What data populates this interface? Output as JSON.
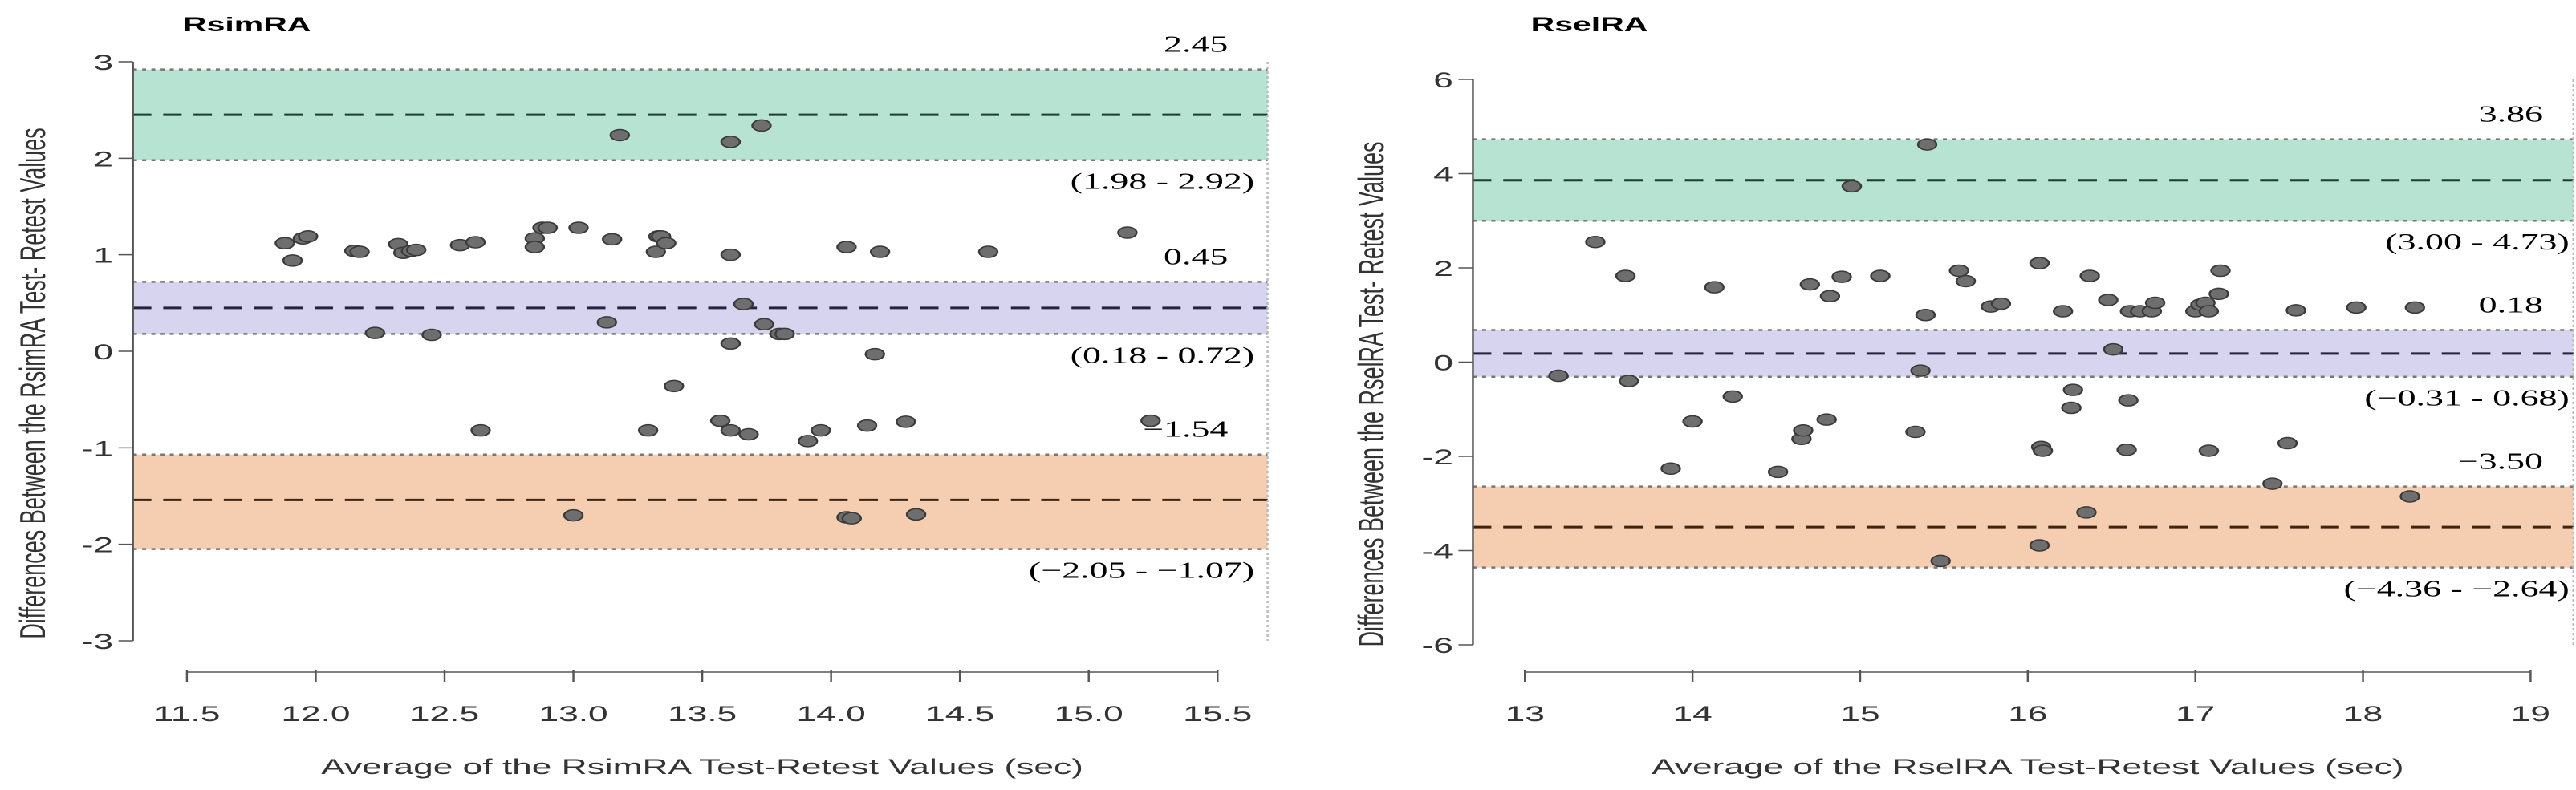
{
  "chart_data": [
    {
      "type": "scatter",
      "title": "RsimRA",
      "xlabel": "Average of the RsimRA Test-Retest Values (sec)",
      "ylabel": "Differences Between the RsimRA Test- Retest Values",
      "xlim": [
        11.3,
        15.7
      ],
      "ylim": [
        -3,
        3
      ],
      "xticks": [
        "11.5",
        "12.0",
        "12.5",
        "13.0",
        "13.5",
        "14.0",
        "14.5",
        "15.0",
        "15.5"
      ],
      "xtick_values": [
        11.5,
        12.0,
        12.5,
        13.0,
        13.5,
        14.0,
        14.5,
        15.0,
        15.5
      ],
      "yticks": [
        "3",
        "2",
        "1",
        "0",
        "-1",
        "-2",
        "-3"
      ],
      "ytick_values": [
        3,
        2,
        1,
        0,
        -1,
        -2,
        -3
      ],
      "bands": [
        {
          "name": "upper-loa",
          "mean": 2.45,
          "low": 1.98,
          "high": 2.92,
          "mean_label": "2.45",
          "ci_label": "(1.98 - 2.92)",
          "color": "#b7e3d3",
          "line_color": "#1f3d33"
        },
        {
          "name": "bias",
          "mean": 0.45,
          "low": 0.18,
          "high": 0.72,
          "mean_label": "0.45",
          "ci_label": "(0.18 - 0.72)",
          "color": "#d6d4ee",
          "line_color": "#25233d"
        },
        {
          "name": "lower-loa",
          "mean": -1.54,
          "low": -2.05,
          "high": -1.07,
          "mean_label": "−1.54",
          "ci_label": "(−2.05 - −1.07)",
          "color": "#f5cdb0",
          "line_color": "#3d2514"
        }
      ],
      "points": [
        [
          11.88,
          1.12
        ],
        [
          11.91,
          0.94
        ],
        [
          11.95,
          1.17
        ],
        [
          11.97,
          1.19
        ],
        [
          12.15,
          1.04
        ],
        [
          12.17,
          1.03
        ],
        [
          12.32,
          1.11
        ],
        [
          12.34,
          1.02
        ],
        [
          12.37,
          1.04
        ],
        [
          12.39,
          1.05
        ],
        [
          12.23,
          0.19
        ],
        [
          12.45,
          0.17
        ],
        [
          12.56,
          1.1
        ],
        [
          12.62,
          1.13
        ],
        [
          12.64,
          -0.82
        ],
        [
          12.85,
          1.17
        ],
        [
          12.85,
          1.08
        ],
        [
          12.88,
          1.28
        ],
        [
          12.9,
          1.28
        ],
        [
          13.02,
          1.28
        ],
        [
          13.15,
          1.16
        ],
        [
          13.13,
          0.3
        ],
        [
          13.18,
          2.24
        ],
        [
          13.0,
          -1.7
        ],
        [
          13.29,
          -0.82
        ],
        [
          13.32,
          1.03
        ],
        [
          13.33,
          1.19
        ],
        [
          13.34,
          1.19
        ],
        [
          13.36,
          1.12
        ],
        [
          13.39,
          -0.36
        ],
        [
          13.57,
          -0.72
        ],
        [
          13.61,
          1.0
        ],
        [
          13.61,
          2.17
        ],
        [
          13.61,
          0.08
        ],
        [
          13.61,
          -0.82
        ],
        [
          13.66,
          0.49
        ],
        [
          13.68,
          -0.86
        ],
        [
          13.73,
          2.34
        ],
        [
          13.74,
          0.28
        ],
        [
          13.8,
          0.18
        ],
        [
          13.82,
          0.18
        ],
        [
          13.91,
          -0.93
        ],
        [
          13.96,
          -0.82
        ],
        [
          14.06,
          1.08
        ],
        [
          14.06,
          -1.72
        ],
        [
          14.08,
          -1.73
        ],
        [
          14.14,
          -0.77
        ],
        [
          14.17,
          -0.03
        ],
        [
          14.19,
          1.03
        ],
        [
          14.29,
          -0.73
        ],
        [
          14.33,
          -1.69
        ],
        [
          14.61,
          1.03
        ],
        [
          15.15,
          1.23
        ],
        [
          15.24,
          -0.72
        ]
      ]
    },
    {
      "type": "scatter",
      "title": "RselRA",
      "xlabel": "Average of the RselRA Test-Retest Values (sec)",
      "ylabel": "Differences Between the RselRA Test- Retest Values",
      "xlim": [
        12.8,
        19.3
      ],
      "ylim": [
        -6,
        6
      ],
      "xticks": [
        "13",
        "14",
        "15",
        "16",
        "17",
        "18",
        "19"
      ],
      "xtick_values": [
        13,
        14,
        15,
        16,
        17,
        18,
        19
      ],
      "yticks": [
        "6",
        "4",
        "2",
        "0",
        "-2",
        "-4",
        "-6"
      ],
      "ytick_values": [
        6,
        4,
        2,
        0,
        -2,
        -4,
        -6
      ],
      "bands": [
        {
          "name": "upper-loa",
          "mean": 3.86,
          "low": 3.0,
          "high": 4.73,
          "mean_label": "3.86",
          "ci_label": "(3.00 - 4.73)",
          "color": "#b7e3d3",
          "line_color": "#1f3d33"
        },
        {
          "name": "bias",
          "mean": 0.18,
          "low": -0.31,
          "high": 0.68,
          "mean_label": "0.18",
          "ci_label": "(−0.31 - 0.68)",
          "color": "#d6d4ee",
          "line_color": "#25233d"
        },
        {
          "name": "lower-loa",
          "mean": -3.5,
          "low": -4.36,
          "high": -2.64,
          "mean_label": "−3.50",
          "ci_label": "(−4.36 - −2.64)",
          "color": "#f5cdb0",
          "line_color": "#3d2514"
        }
      ],
      "points": [
        [
          13.2,
          -0.29
        ],
        [
          13.42,
          2.55
        ],
        [
          13.6,
          1.83
        ],
        [
          13.62,
          -0.4
        ],
        [
          13.87,
          -2.26
        ],
        [
          14.0,
          -1.26
        ],
        [
          14.13,
          1.59
        ],
        [
          14.24,
          -0.73
        ],
        [
          14.51,
          -2.33
        ],
        [
          14.65,
          -1.63
        ],
        [
          14.66,
          -1.45
        ],
        [
          14.7,
          1.65
        ],
        [
          14.8,
          -1.22
        ],
        [
          14.82,
          1.4
        ],
        [
          14.89,
          1.81
        ],
        [
          14.95,
          3.73
        ],
        [
          15.12,
          1.83
        ],
        [
          15.33,
          -1.48
        ],
        [
          15.36,
          -0.18
        ],
        [
          15.39,
          1.0
        ],
        [
          15.4,
          4.62
        ],
        [
          15.48,
          -4.22
        ],
        [
          15.59,
          1.94
        ],
        [
          15.63,
          1.72
        ],
        [
          15.78,
          1.18
        ],
        [
          15.84,
          1.24
        ],
        [
          16.07,
          2.1
        ],
        [
          16.07,
          -3.89
        ],
        [
          16.08,
          -1.8
        ],
        [
          16.09,
          -1.88
        ],
        [
          16.21,
          1.08
        ],
        [
          16.26,
          -0.97
        ],
        [
          16.27,
          -0.59
        ],
        [
          16.35,
          -3.19
        ],
        [
          16.37,
          1.83
        ],
        [
          16.48,
          1.32
        ],
        [
          16.51,
          0.27
        ],
        [
          16.59,
          -1.86
        ],
        [
          16.6,
          -0.81
        ],
        [
          16.61,
          1.08
        ],
        [
          16.67,
          1.08
        ],
        [
          16.74,
          1.08
        ],
        [
          16.76,
          1.26
        ],
        [
          17.0,
          1.08
        ],
        [
          17.03,
          1.22
        ],
        [
          17.06,
          1.26
        ],
        [
          17.08,
          1.08
        ],
        [
          17.08,
          -1.88
        ],
        [
          17.14,
          1.45
        ],
        [
          17.15,
          1.94
        ],
        [
          17.46,
          -2.58
        ],
        [
          17.55,
          -1.72
        ],
        [
          17.6,
          1.1
        ],
        [
          17.96,
          1.16
        ],
        [
          18.28,
          -2.85
        ],
        [
          18.31,
          1.16
        ]
      ]
    }
  ]
}
